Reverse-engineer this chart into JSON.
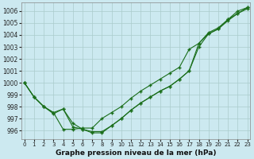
{
  "xlabel": "Graphe pression niveau de la mer (hPa)",
  "bg_color": "#cce9f0",
  "grid_color": "#aacccc",
  "line_color": "#1a6e1a",
  "x_ticks": [
    0,
    1,
    2,
    3,
    4,
    5,
    6,
    7,
    8,
    9,
    10,
    11,
    12,
    13,
    14,
    15,
    16,
    17,
    18,
    19,
    20,
    21,
    22,
    23
  ],
  "y_ticks": [
    996,
    997,
    998,
    999,
    1000,
    1001,
    1002,
    1003,
    1004,
    1005,
    1006
  ],
  "ylim": [
    995.3,
    1006.7
  ],
  "xlim": [
    -0.3,
    23.3
  ],
  "line1": [
    1000.0,
    998.8,
    998.0,
    997.5,
    996.1,
    996.1,
    996.2,
    996.2,
    997.0,
    997.5,
    998.0,
    998.7,
    999.3,
    999.8,
    1000.3,
    1000.8,
    1001.3,
    1002.8,
    1003.3,
    1004.1,
    1004.5,
    1005.3,
    1005.8,
    1006.3
  ],
  "line2": [
    1000.0,
    998.8,
    998.0,
    997.5,
    997.8,
    996.6,
    996.1,
    995.9,
    995.9,
    996.4,
    997.0,
    997.7,
    998.3,
    998.8,
    999.3,
    999.7,
    1000.3,
    1001.0,
    1003.0,
    1004.1,
    1004.5,
    1005.2,
    1005.8,
    1006.2
  ],
  "line3": [
    1000.0,
    998.8,
    998.0,
    997.4,
    997.8,
    996.3,
    996.1,
    995.8,
    995.8,
    996.4,
    997.0,
    997.7,
    998.3,
    998.8,
    999.3,
    999.7,
    1000.3,
    1001.0,
    1003.3,
    1004.2,
    1004.6,
    1005.3,
    1006.0,
    1006.3
  ]
}
